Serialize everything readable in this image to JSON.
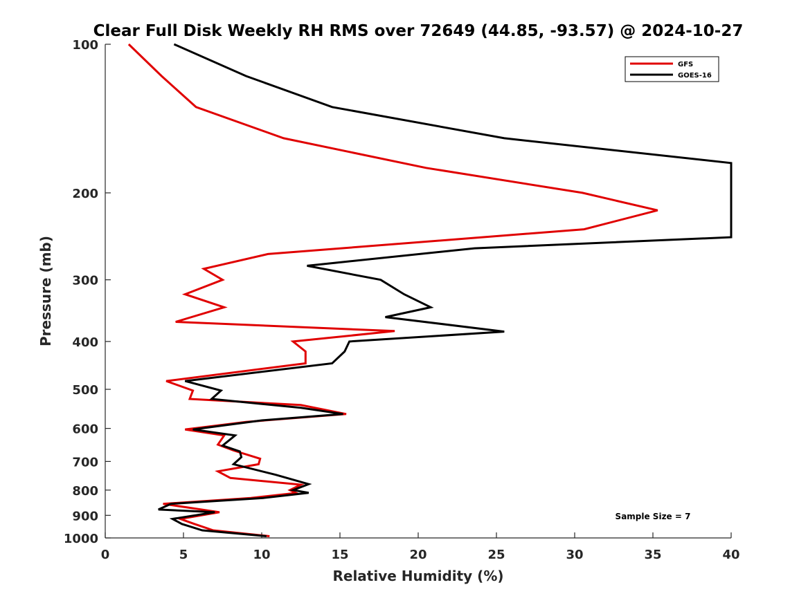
{
  "chart_data": {
    "type": "line",
    "title": "Clear Full Disk Weekly RH RMS over 72649 (44.85, -93.57) @ 2024-10-27",
    "xlabel": "Relative Humidity (%)",
    "ylabel": "Pressure (mb)",
    "xlim": [
      0,
      40
    ],
    "ylim": [
      100,
      1000
    ],
    "yscale": "log",
    "y_reversed": true,
    "grid": false,
    "legend_position": "top-right",
    "xticks": [
      0,
      5,
      10,
      15,
      20,
      25,
      30,
      35,
      40
    ],
    "yticks": [
      100,
      200,
      300,
      400,
      500,
      600,
      700,
      800,
      900,
      1000
    ],
    "annotation": "Sample Size = 7",
    "series": [
      {
        "name": "GFS",
        "color": "#e00000",
        "points": [
          [
            1.5,
            100
          ],
          [
            3.6,
            116
          ],
          [
            5.8,
            134
          ],
          [
            11.4,
            155
          ],
          [
            20.5,
            178
          ],
          [
            30.5,
            200
          ],
          [
            35.3,
            217
          ],
          [
            30.6,
            237
          ],
          [
            10.4,
            266
          ],
          [
            6.3,
            285
          ],
          [
            7.5,
            300
          ],
          [
            5.1,
            321
          ],
          [
            7.6,
            341
          ],
          [
            4.5,
            365
          ],
          [
            18.5,
            381
          ],
          [
            12.0,
            400
          ],
          [
            12.8,
            419
          ],
          [
            12.8,
            443
          ],
          [
            3.9,
            481
          ],
          [
            5.6,
            503
          ],
          [
            5.4,
            523
          ],
          [
            12.5,
            538
          ],
          [
            15.4,
            561
          ],
          [
            9.0,
            582
          ],
          [
            5.1,
            603
          ],
          [
            7.6,
            620
          ],
          [
            7.2,
            647
          ],
          [
            8.2,
            665
          ],
          [
            9.9,
            691
          ],
          [
            9.8,
            709
          ],
          [
            7.2,
            733
          ],
          [
            8.0,
            756
          ],
          [
            12.5,
            780
          ],
          [
            11.8,
            800
          ],
          [
            12.2,
            811
          ],
          [
            9.3,
            830
          ],
          [
            3.7,
            853
          ],
          [
            7.3,
            887
          ],
          [
            4.8,
            915
          ],
          [
            5.7,
            937
          ],
          [
            6.9,
            965
          ],
          [
            10.5,
            992
          ]
        ]
      },
      {
        "name": "GOES-16",
        "color": "#000000",
        "points": [
          [
            4.4,
            100
          ],
          [
            9.0,
            116
          ],
          [
            14.5,
            134
          ],
          [
            25.5,
            155
          ],
          [
            40.0,
            174
          ],
          [
            40.0,
            246
          ],
          [
            23.6,
            259
          ],
          [
            12.9,
            281
          ],
          [
            17.6,
            300
          ],
          [
            19.1,
            321
          ],
          [
            20.8,
            341
          ],
          [
            17.9,
            357
          ],
          [
            25.5,
            382
          ],
          [
            15.6,
            400
          ],
          [
            15.3,
            419
          ],
          [
            14.5,
            443
          ],
          [
            5.1,
            481
          ],
          [
            7.4,
            503
          ],
          [
            6.8,
            523
          ],
          [
            12.5,
            545
          ],
          [
            15.2,
            561
          ],
          [
            10.0,
            578
          ],
          [
            5.6,
            603
          ],
          [
            8.3,
            620
          ],
          [
            7.5,
            650
          ],
          [
            8.6,
            668
          ],
          [
            8.7,
            686
          ],
          [
            8.2,
            709
          ],
          [
            10.9,
            745
          ],
          [
            13.0,
            778
          ],
          [
            12.0,
            800
          ],
          [
            13.0,
            810
          ],
          [
            10.1,
            830
          ],
          [
            4.2,
            853
          ],
          [
            3.4,
            876
          ],
          [
            7.0,
            887
          ],
          [
            4.3,
            915
          ],
          [
            4.9,
            937
          ],
          [
            6.2,
            965
          ],
          [
            10.3,
            992
          ]
        ]
      }
    ]
  }
}
